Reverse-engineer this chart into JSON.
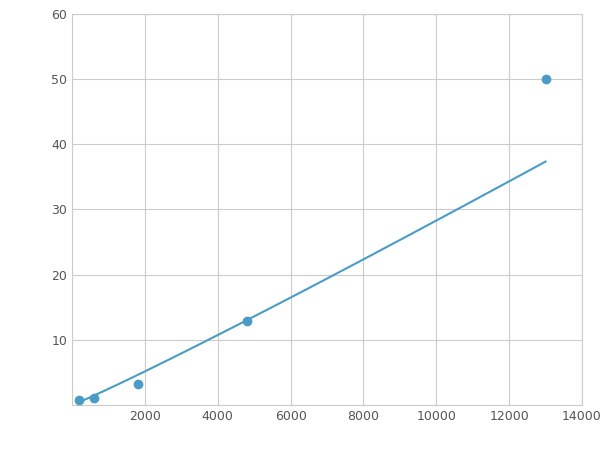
{
  "x_points": [
    200,
    600,
    1800,
    4800,
    13000
  ],
  "y_points": [
    0.7,
    1.0,
    3.2,
    12.9,
    50.0
  ],
  "line_color": "#4a9cc7",
  "marker_color": "#4a9cc7",
  "marker_size": 6,
  "line_width": 1.5,
  "xlim": [
    0,
    14000
  ],
  "ylim": [
    0,
    60
  ],
  "xticks": [
    0,
    2000,
    4000,
    6000,
    8000,
    10000,
    12000,
    14000
  ],
  "yticks": [
    0,
    10,
    20,
    30,
    40,
    50,
    60
  ],
  "grid_color": "#cccccc",
  "background_color": "#ffffff",
  "figsize": [
    6.0,
    4.5
  ],
  "dpi": 100
}
